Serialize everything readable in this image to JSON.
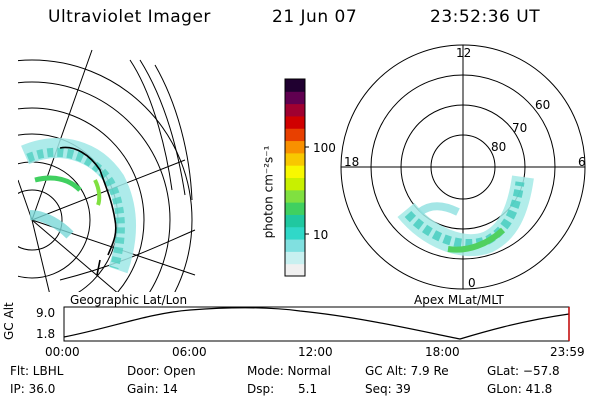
{
  "header": {
    "title": "Ultraviolet Imager",
    "date": "21 Jun 07",
    "time": "23:52:36 UT"
  },
  "colorbar": {
    "label": "photon cm⁻²s⁻¹",
    "tick_labels": [
      "100",
      "10"
    ],
    "scale": "log",
    "colors": [
      "#f0f0f0",
      "#c8f0f0",
      "#80e0e0",
      "#30d8c8",
      "#20c8a0",
      "#40d060",
      "#80e040",
      "#c8f000",
      "#f8f800",
      "#f8c800",
      "#f89000",
      "#e84000",
      "#d00000",
      "#a00030",
      "#600050",
      "#200030"
    ]
  },
  "left_map": {
    "caption": "Geographic Lat/Lon"
  },
  "polar_plot": {
    "caption": "Apex MLat/MLT",
    "mlt_labels": [
      "12",
      "18",
      "6",
      "0"
    ],
    "mlat_labels": [
      "60",
      "70",
      "80"
    ]
  },
  "orbit_strip": {
    "ylabel": "GC Alt",
    "ytick_labels": [
      "9.0",
      "1.8"
    ],
    "xtick_labels": [
      "00:00",
      "06:00",
      "12:00",
      "18:00",
      "23:59"
    ]
  },
  "status": {
    "flt": "Flt: LBHL",
    "door": "Door: Open",
    "mode": "Mode: Normal",
    "gc_alt": "GC Alt: 7.9 Re",
    "glat": "GLat: −57.8",
    "ip": "IP: 36.0",
    "gain": "Gain: 14",
    "dsp_label": "Dsp:",
    "dsp_value": "5.1",
    "seq": "Seq: 39",
    "glon": "GLon:  41.8"
  }
}
